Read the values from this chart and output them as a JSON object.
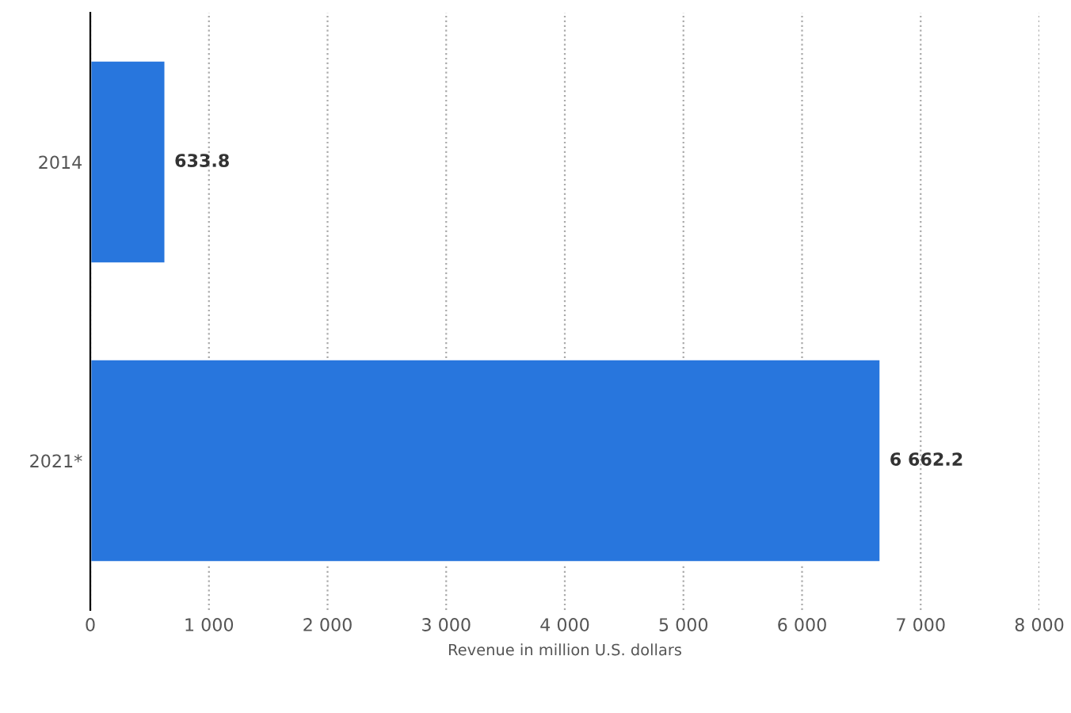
{
  "chart_data": {
    "type": "bar",
    "orientation": "horizontal",
    "categories": [
      "2014",
      "2021*"
    ],
    "values": [
      633.8,
      6662.2
    ],
    "color": "#2876dd",
    "data_labels": true,
    "value_labels": [
      "633.8",
      "6 662.2"
    ],
    "xlabel": "Revenue in million U.S. dollars",
    "xlim": [
      0,
      8000
    ],
    "xticks": [
      0,
      {
        "value": 1000,
        "label": "1 000"
      },
      {
        "value": 2000,
        "label": "2 000"
      },
      {
        "value": 3000,
        "label": "3 000"
      },
      {
        "value": 4000,
        "label": "4 000"
      },
      {
        "value": 5000,
        "label": "5 000"
      },
      {
        "value": 6000,
        "label": "6 000"
      },
      {
        "value": 7000,
        "label": "7 000"
      },
      {
        "value": 8000,
        "label": "8 000"
      }
    ],
    "grid": "x",
    "legend": false
  }
}
